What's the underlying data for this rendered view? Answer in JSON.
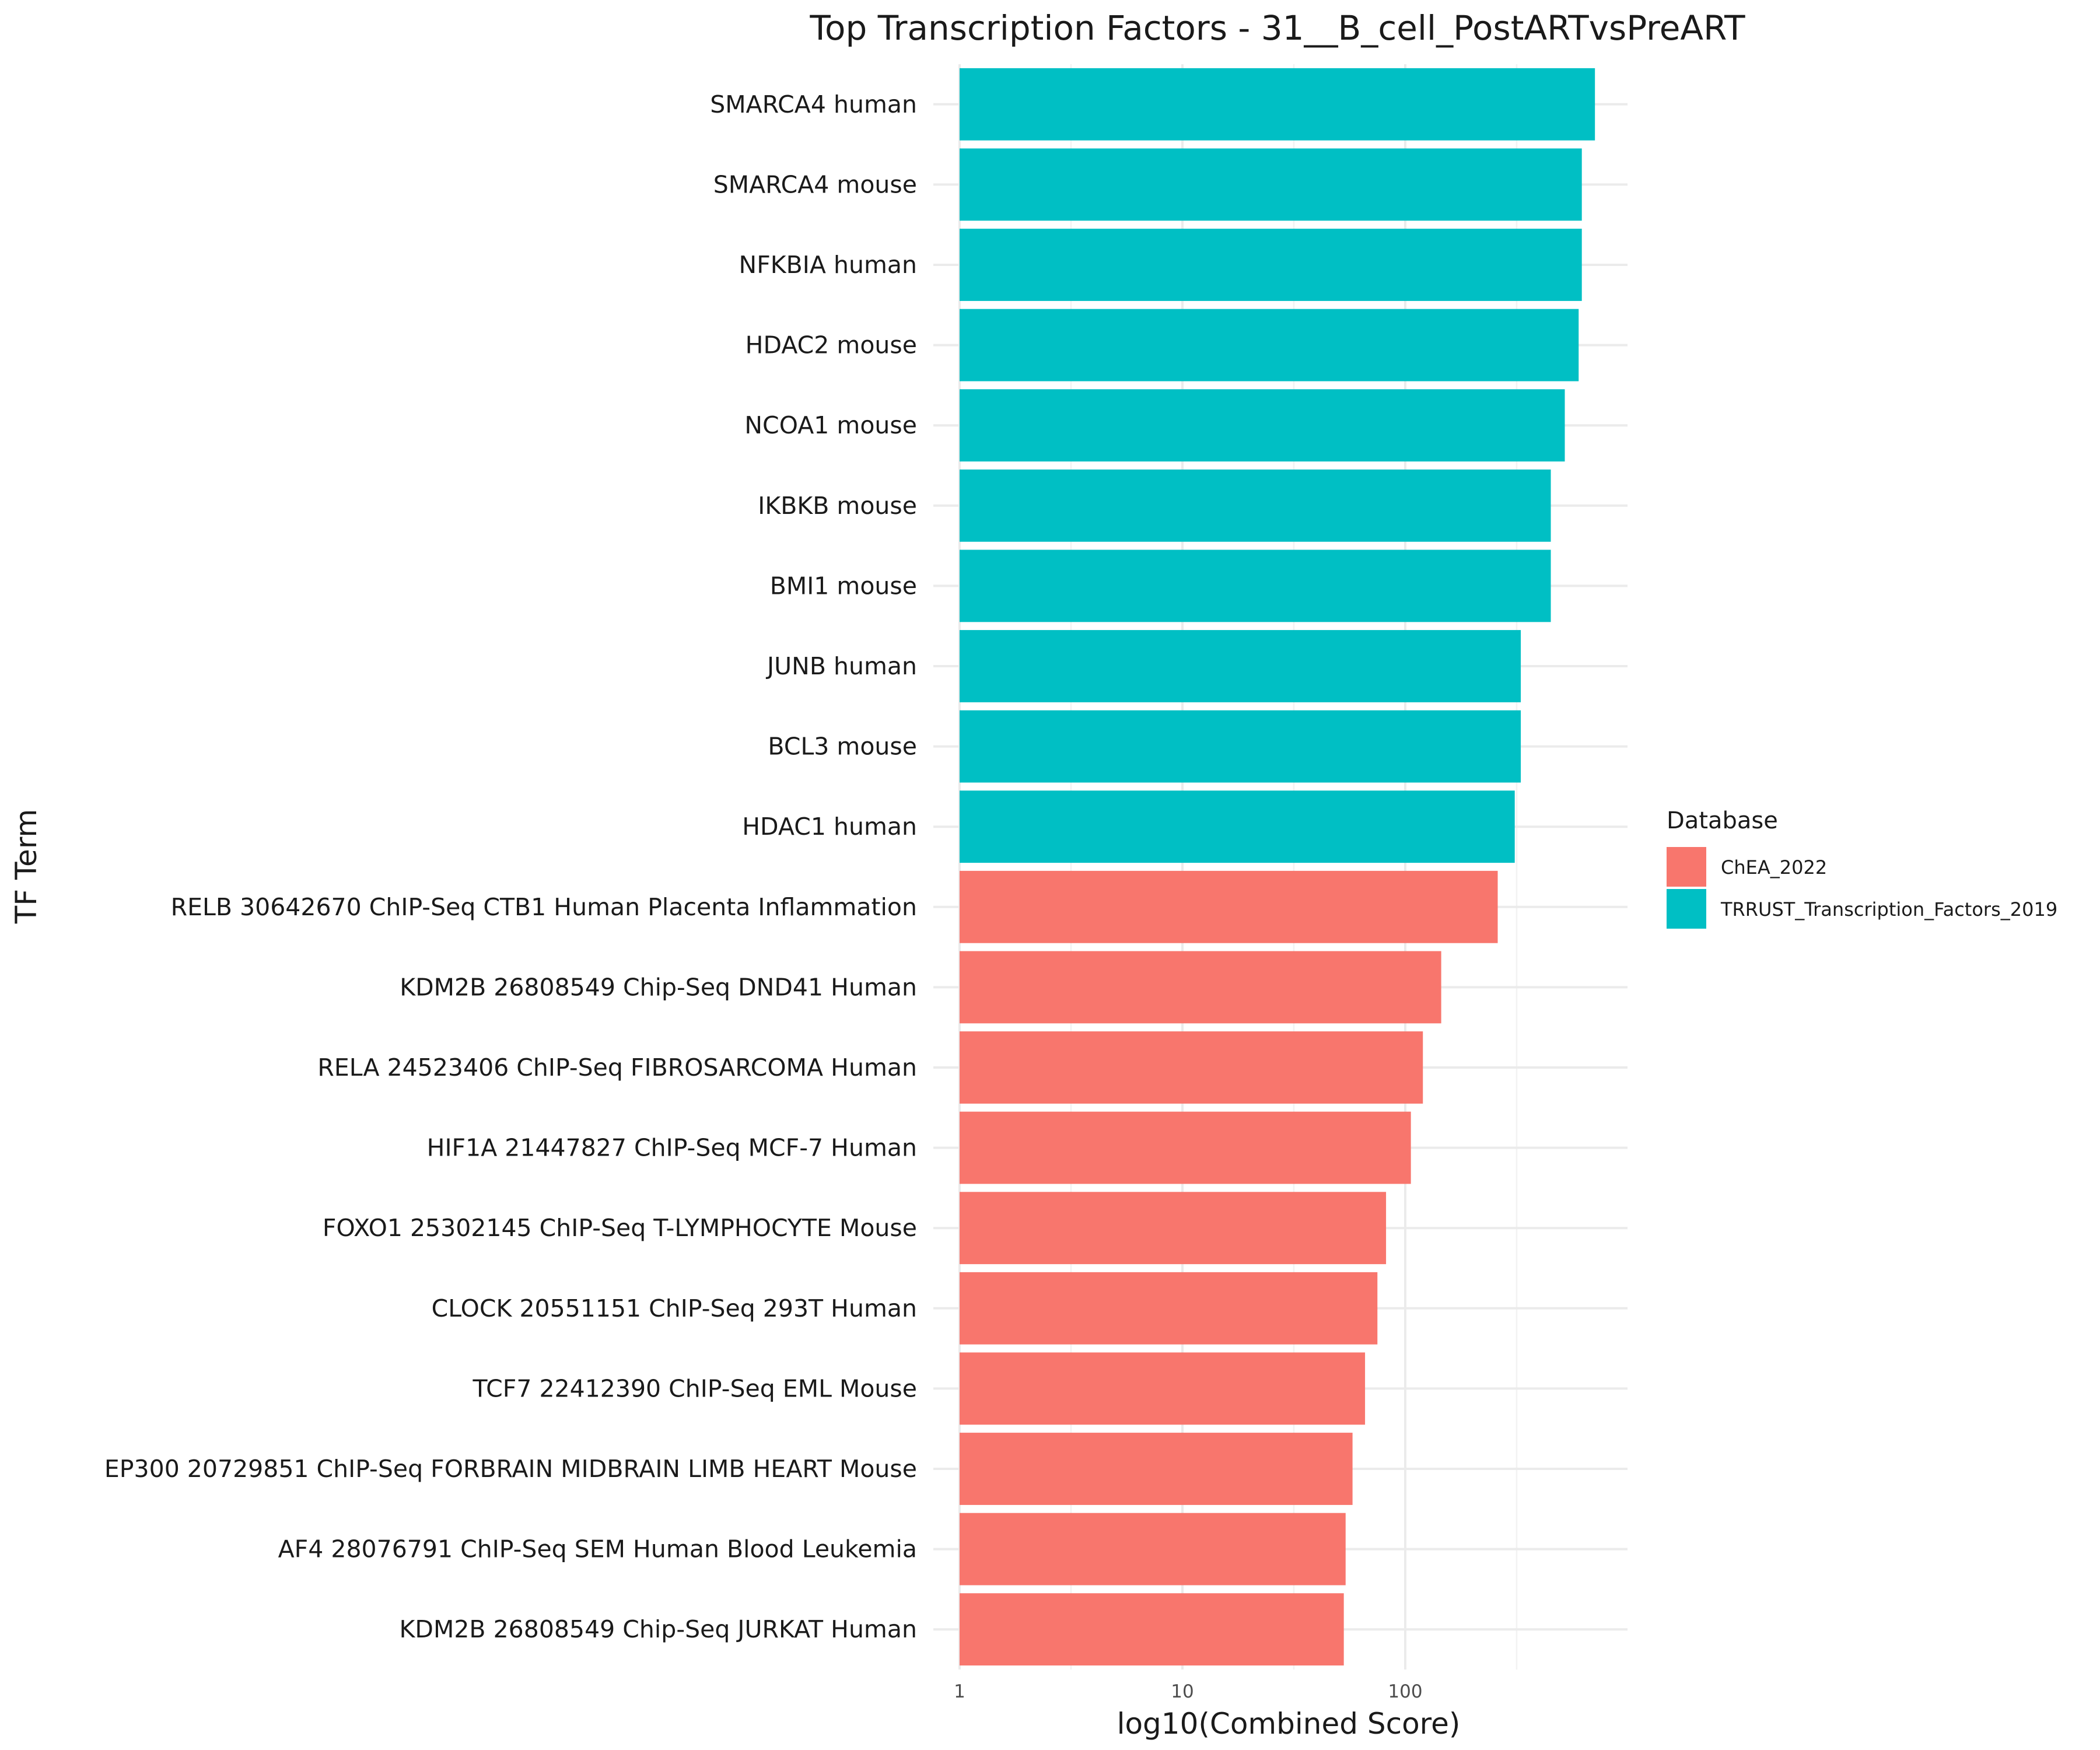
{
  "chart_data": {
    "type": "bar",
    "orientation": "horizontal",
    "title": "Top Transcription Factors - 31__B_cell_PostARTvsPreART",
    "xlabel": "log10(Combined Score)",
    "ylabel": "TF Term",
    "x_scale": "log10",
    "xlim": [
      1,
      1000
    ],
    "x_ticks": [
      1,
      10,
      100
    ],
    "x_tick_labels": [
      "1",
      "10",
      "100"
    ],
    "grid": true,
    "legend": {
      "title": "Database",
      "placement": "right",
      "entries": [
        {
          "label": "ChEA_2022",
          "color": "#F8766D"
        },
        {
          "label": "TRRUST_Transcription_Factors_2019",
          "color": "#00BFC4"
        }
      ]
    },
    "categories": [
      "SMARCA4 human",
      "SMARCA4 mouse",
      "NFKBIA human",
      "HDAC2 mouse",
      "NCOA1 mouse",
      "IKBKB mouse",
      "BMI1 mouse",
      "JUNB human",
      "BCL3 mouse",
      "HDAC1 human",
      "RELB 30642670 ChIP-Seq CTB1 Human Placenta Inflammation",
      "KDM2B 26808549 Chip-Seq DND41 Human",
      "RELA 24523406 ChIP-Seq FIBROSARCOMA Human",
      "HIF1A 21447827 ChIP-Seq MCF-7 Human",
      "FOXO1 25302145 ChIP-Seq T-LYMPHOCYTE Mouse",
      "CLOCK 20551151 ChIP-Seq 293T Human",
      "TCF7 22412390 ChIP-Seq EML Mouse",
      "EP300 20729851 ChIP-Seq FORBRAIN MIDBRAIN LIMB HEART Mouse",
      "AF4 28076791 ChIP-Seq SEM Human Blood Leukemia",
      "KDM2B 26808549 Chip-Seq JURKAT Human"
    ],
    "values": [
      710,
      620,
      620,
      600,
      520,
      450,
      450,
      330,
      330,
      310,
      260,
      145,
      120,
      106,
      82,
      75,
      66,
      58,
      54,
      53
    ],
    "database": [
      "TRRUST_Transcription_Factors_2019",
      "TRRUST_Transcription_Factors_2019",
      "TRRUST_Transcription_Factors_2019",
      "TRRUST_Transcription_Factors_2019",
      "TRRUST_Transcription_Factors_2019",
      "TRRUST_Transcription_Factors_2019",
      "TRRUST_Transcription_Factors_2019",
      "TRRUST_Transcription_Factors_2019",
      "TRRUST_Transcription_Factors_2019",
      "TRRUST_Transcription_Factors_2019",
      "ChEA_2022",
      "ChEA_2022",
      "ChEA_2022",
      "ChEA_2022",
      "ChEA_2022",
      "ChEA_2022",
      "ChEA_2022",
      "ChEA_2022",
      "ChEA_2022",
      "ChEA_2022"
    ]
  }
}
